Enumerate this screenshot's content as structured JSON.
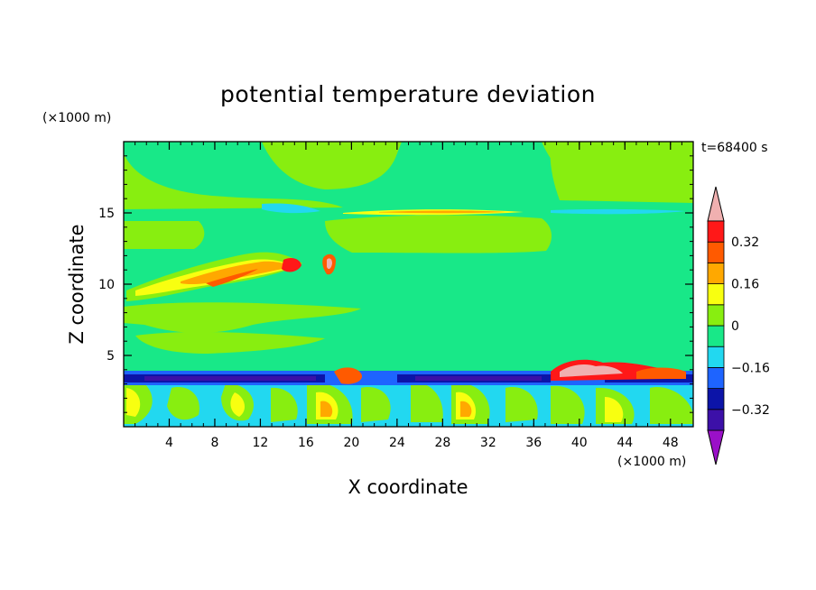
{
  "chart_data": {
    "type": "heatmap",
    "title": "potential temperature deviation",
    "time_label": "t=68400 s",
    "xlabel": "X coordinate",
    "ylabel": "Z coordinate",
    "x_unit": "(×1000 m)",
    "y_unit": "(×1000 m)",
    "xlim": [
      0,
      50
    ],
    "ylim": [
      0,
      20
    ],
    "x_ticks": [
      4,
      8,
      12,
      16,
      20,
      24,
      28,
      32,
      36,
      40,
      44,
      48
    ],
    "y_ticks": [
      5,
      10,
      15
    ],
    "colorbar": {
      "levels": [
        -0.4,
        -0.32,
        -0.24,
        -0.16,
        -0.08,
        0,
        0.08,
        0.16,
        0.24,
        0.32,
        0.4
      ],
      "labels": [
        "-0.32",
        "-0.16",
        "0",
        "0.16",
        "0.32"
      ],
      "label_values": [
        -0.32,
        -0.16,
        0,
        0.16,
        0.32
      ],
      "colors": [
        "#9a10c8",
        "#3c10a8",
        "#0c14a8",
        "#1e64ff",
        "#22d8f0",
        "#18e888",
        "#88ee10",
        "#f8ff10",
        "#ffa800",
        "#ff5a00",
        "#ff1818",
        "#f0b0b0"
      ]
    },
    "bands": [
      {
        "zmin": 0,
        "zmax": 3.8,
        "description_level": 0
      },
      {
        "zmin": 3.8,
        "zmax": 20,
        "description_level": 0
      }
    ]
  }
}
